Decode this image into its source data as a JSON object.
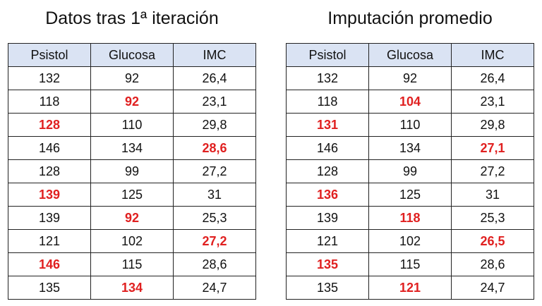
{
  "panels": [
    {
      "title": "Datos tras 1ª iteración",
      "headers": [
        "Psistol",
        "Glucosa",
        "IMC"
      ],
      "rows": [
        [
          "132",
          "92",
          "26,4"
        ],
        [
          "118",
          "92",
          "23,1"
        ],
        [
          "128",
          "110",
          "29,8"
        ],
        [
          "146",
          "134",
          "28,6"
        ],
        [
          "128",
          "99",
          "27,2"
        ],
        [
          "139",
          "125",
          "31"
        ],
        [
          "139",
          "92",
          "25,3"
        ],
        [
          "121",
          "102",
          "27,2"
        ],
        [
          "146",
          "115",
          "28,6"
        ],
        [
          "135",
          "134",
          "24,7"
        ]
      ],
      "highlighted": [
        [
          1,
          1
        ],
        [
          2,
          0
        ],
        [
          3,
          2
        ],
        [
          5,
          0
        ],
        [
          6,
          1
        ],
        [
          7,
          2
        ],
        [
          8,
          0
        ],
        [
          9,
          1
        ]
      ]
    },
    {
      "title": "Imputación promedio",
      "headers": [
        "Psistol",
        "Glucosa",
        "IMC"
      ],
      "rows": [
        [
          "132",
          "92",
          "26,4"
        ],
        [
          "118",
          "104",
          "23,1"
        ],
        [
          "131",
          "110",
          "29,8"
        ],
        [
          "146",
          "134",
          "27,1"
        ],
        [
          "128",
          "99",
          "27,2"
        ],
        [
          "136",
          "125",
          "31"
        ],
        [
          "139",
          "118",
          "25,3"
        ],
        [
          "121",
          "102",
          "26,5"
        ],
        [
          "135",
          "115",
          "28,6"
        ],
        [
          "135",
          "121",
          "24,7"
        ]
      ],
      "highlighted": [
        [
          1,
          1
        ],
        [
          2,
          0
        ],
        [
          3,
          2
        ],
        [
          5,
          0
        ],
        [
          6,
          1
        ],
        [
          7,
          2
        ],
        [
          8,
          0
        ],
        [
          9,
          1
        ]
      ]
    }
  ],
  "colors": {
    "header_background": "#dae3f3",
    "imputed_text": "#e02020",
    "border": "#222222"
  }
}
